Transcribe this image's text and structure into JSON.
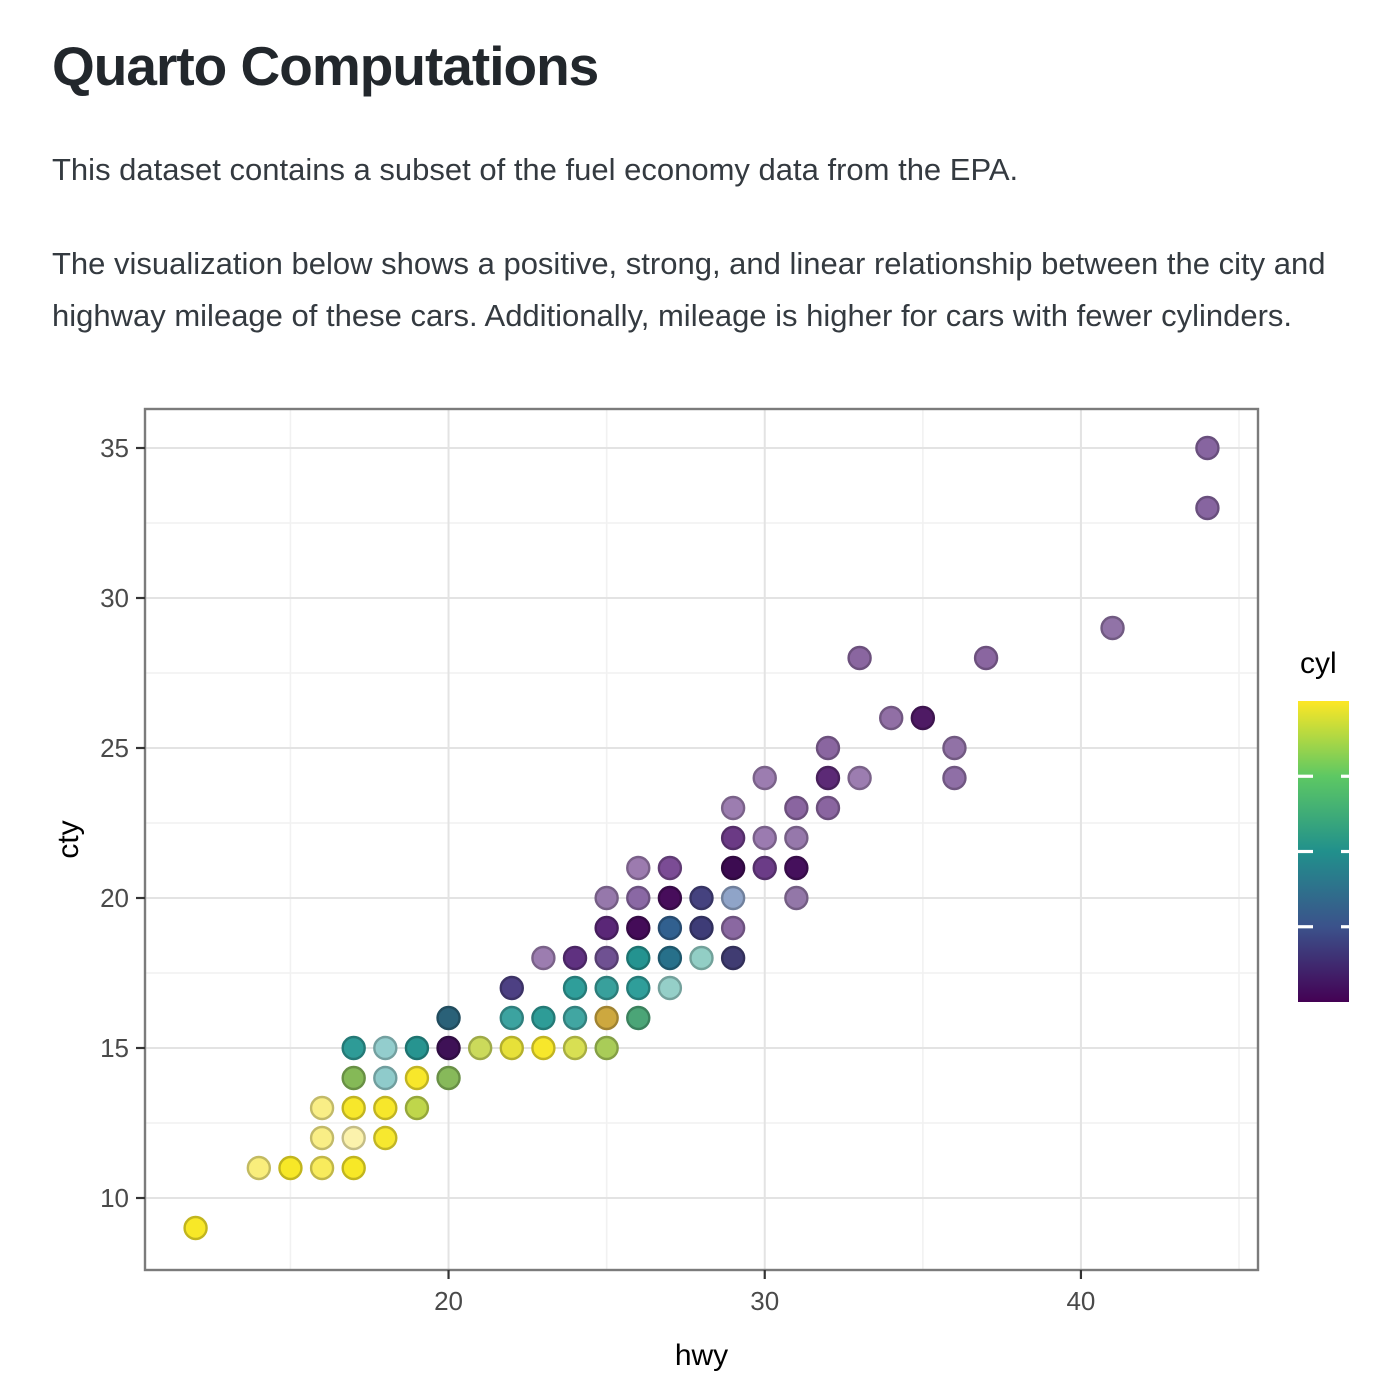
{
  "header": {
    "title": "Quarto Computations"
  },
  "paragraphs": [
    "This dataset contains a subset of the fuel economy data from the EPA.",
    "The visualization below shows a positive, strong, and linear relationship between the city and highway mileage of these cars. Additionally, mileage is higher for cars with fewer cylinders."
  ],
  "chart_data": {
    "type": "scatter",
    "title": "",
    "xlabel": "hwy",
    "ylabel": "cty",
    "legend_title": "cyl",
    "x_domain": [
      10.4,
      45.6
    ],
    "y_domain": [
      7.6,
      36.3
    ],
    "x_ticks": [
      20,
      30,
      40
    ],
    "x_minor_ticks": [
      15,
      25,
      35,
      45
    ],
    "y_ticks": [
      10,
      15,
      20,
      25,
      30,
      35
    ],
    "y_minor_ticks": [
      12.5,
      17.5,
      22.5,
      27.5,
      32.5
    ],
    "grid": true,
    "legend_position": "right",
    "color_scale": {
      "name": "viridis",
      "domain": [
        4,
        8
      ],
      "legend_ticks": [
        5,
        6,
        7
      ],
      "stops_bottom_to_top": [
        "#440154",
        "#3B528B",
        "#21908C",
        "#5DC863",
        "#FDE725"
      ]
    },
    "points_format": [
      "hwy",
      "cty",
      "cyl",
      "fill"
    ],
    "points": [
      [
        12,
        9,
        8,
        "#F8E827"
      ],
      [
        14,
        11,
        8,
        "#F9EE7C"
      ],
      [
        15,
        11,
        8,
        "#F7E827"
      ],
      [
        16,
        11,
        8,
        "#F8EB5C"
      ],
      [
        17,
        11,
        8,
        "#F7E827"
      ],
      [
        16,
        12,
        8,
        "#F9EE86"
      ],
      [
        17,
        12,
        8,
        "#FBF2AC"
      ],
      [
        18,
        12,
        8,
        "#F7E82F"
      ],
      [
        16,
        13,
        8,
        "#F9EE86"
      ],
      [
        17,
        13,
        8,
        "#F7E72B"
      ],
      [
        18,
        13,
        8,
        "#F7E72B"
      ],
      [
        19,
        13,
        8,
        "#BFD64B"
      ],
      [
        17,
        14,
        6,
        "#85B957"
      ],
      [
        18,
        14,
        6,
        "#8FCBCB"
      ],
      [
        19,
        14,
        8,
        "#F8E72B"
      ],
      [
        20,
        14,
        6,
        "#87B95A"
      ],
      [
        17,
        15,
        6,
        "#2E9B97"
      ],
      [
        18,
        15,
        6,
        "#93CDCD"
      ],
      [
        19,
        15,
        6,
        "#279490"
      ],
      [
        20,
        15,
        4,
        "#3E1156"
      ],
      [
        21,
        15,
        8,
        "#CBDA5B"
      ],
      [
        22,
        15,
        8,
        "#E7E139"
      ],
      [
        23,
        15,
        8,
        "#F7E72B"
      ],
      [
        24,
        15,
        8,
        "#D8DF53"
      ],
      [
        25,
        15,
        6,
        "#A9CC58"
      ],
      [
        20,
        16,
        4,
        "#2A6178"
      ],
      [
        22,
        16,
        6,
        "#3CA3A0"
      ],
      [
        23,
        16,
        6,
        "#2E9C97"
      ],
      [
        24,
        16,
        6,
        "#41A6A2"
      ],
      [
        25,
        16,
        8,
        "#CDA83F"
      ],
      [
        26,
        16,
        6,
        "#4BA577"
      ],
      [
        22,
        17,
        4,
        "#4D4083"
      ],
      [
        24,
        17,
        6,
        "#2F9E9A"
      ],
      [
        25,
        17,
        6,
        "#38A09C"
      ],
      [
        26,
        17,
        6,
        "#2F9E9A"
      ],
      [
        27,
        17,
        6,
        "#95CFC8"
      ],
      [
        23,
        18,
        4,
        "#9C7DB0"
      ],
      [
        24,
        18,
        4,
        "#5F3180"
      ],
      [
        25,
        18,
        4,
        "#6F5192"
      ],
      [
        26,
        18,
        6,
        "#249390"
      ],
      [
        27,
        18,
        6,
        "#27708A"
      ],
      [
        28,
        18,
        6,
        "#92CEC5"
      ],
      [
        29,
        18,
        4,
        "#403C72"
      ],
      [
        25,
        19,
        4,
        "#5A2777"
      ],
      [
        26,
        19,
        4,
        "#440C58"
      ],
      [
        27,
        19,
        4,
        "#31608F"
      ],
      [
        28,
        19,
        4,
        "#3E3C77"
      ],
      [
        29,
        19,
        4,
        "#8A68A1"
      ],
      [
        25,
        20,
        4,
        "#9678AB"
      ],
      [
        26,
        20,
        4,
        "#8A68A4"
      ],
      [
        27,
        20,
        4,
        "#470D5B"
      ],
      [
        28,
        20,
        5,
        "#45427F"
      ],
      [
        29,
        20,
        5,
        "#8FA4C8"
      ],
      [
        31,
        20,
        4,
        "#9377A8"
      ],
      [
        26,
        21,
        4,
        "#9C7BAF"
      ],
      [
        27,
        21,
        4,
        "#7B4C95"
      ],
      [
        29,
        21,
        4,
        "#3C0B51"
      ],
      [
        30,
        21,
        4,
        "#6B3C87"
      ],
      [
        31,
        21,
        4,
        "#45105C"
      ],
      [
        29,
        22,
        4,
        "#6B3A85"
      ],
      [
        30,
        22,
        4,
        "#9B7BB0"
      ],
      [
        31,
        22,
        4,
        "#9678AB"
      ],
      [
        29,
        23,
        4,
        "#9C7DB0"
      ],
      [
        31,
        23,
        4,
        "#8A65A0"
      ],
      [
        32,
        23,
        4,
        "#8A65A0"
      ],
      [
        30,
        24,
        4,
        "#9C7DB0"
      ],
      [
        32,
        24,
        4,
        "#5C2A76"
      ],
      [
        33,
        24,
        4,
        "#9C7DB0"
      ],
      [
        36,
        24,
        4,
        "#8F6FA6"
      ],
      [
        32,
        25,
        4,
        "#8A66A0"
      ],
      [
        36,
        25,
        4,
        "#9172A6"
      ],
      [
        34,
        26,
        4,
        "#916FA5"
      ],
      [
        35,
        26,
        4,
        "#4E1A64"
      ],
      [
        33,
        28,
        4,
        "#8A66A0"
      ],
      [
        37,
        28,
        4,
        "#8A66A0"
      ],
      [
        41,
        29,
        4,
        "#9173A7"
      ],
      [
        44,
        33,
        4,
        "#8765A0"
      ],
      [
        44,
        35,
        4,
        "#8765A0"
      ]
    ]
  }
}
